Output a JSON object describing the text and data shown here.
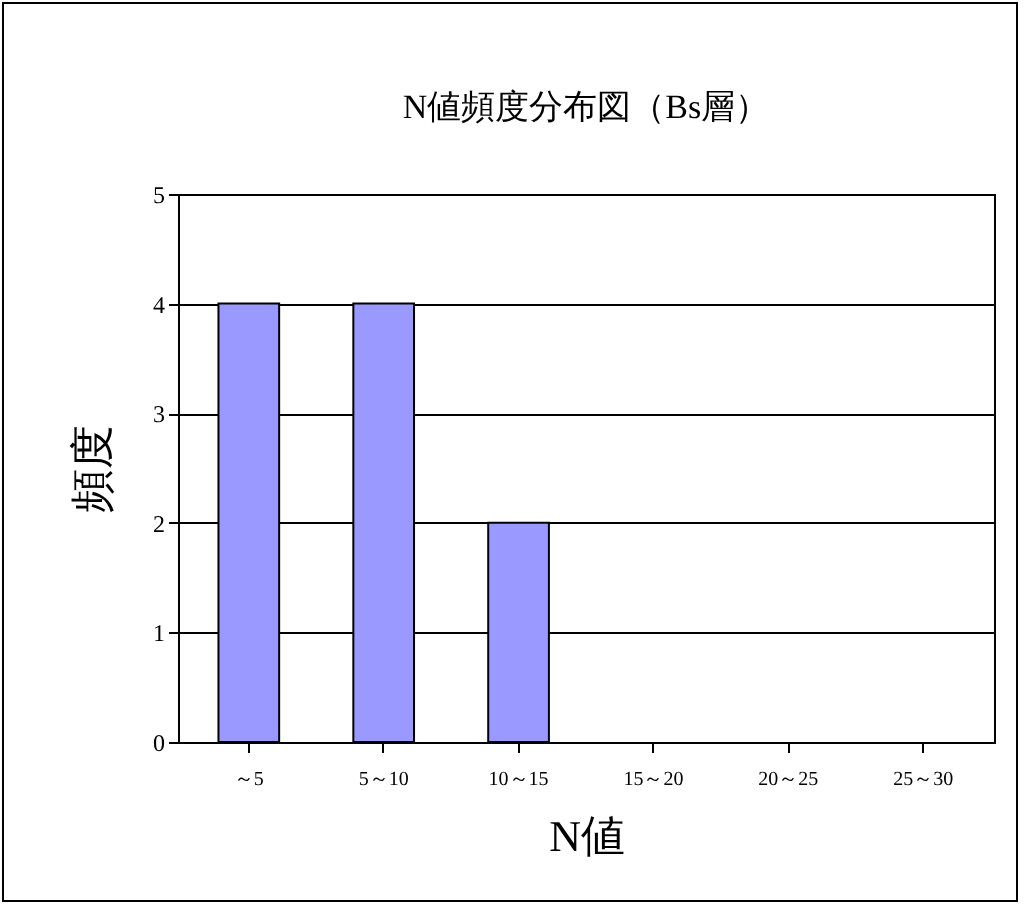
{
  "chart_data": {
    "type": "bar",
    "title": "N値頻度分布図（Bs層）",
    "xlabel": "N値",
    "ylabel": "頻度",
    "categories": [
      "～5",
      "5～10",
      "10～15",
      "15～20",
      "20～25",
      "25～30"
    ],
    "values": [
      4,
      4,
      2,
      0,
      0,
      0
    ],
    "color": "#9999ff",
    "ylim": [
      0,
      5
    ],
    "yticks": [
      0,
      1,
      2,
      3,
      4,
      5
    ],
    "grid": "y"
  }
}
